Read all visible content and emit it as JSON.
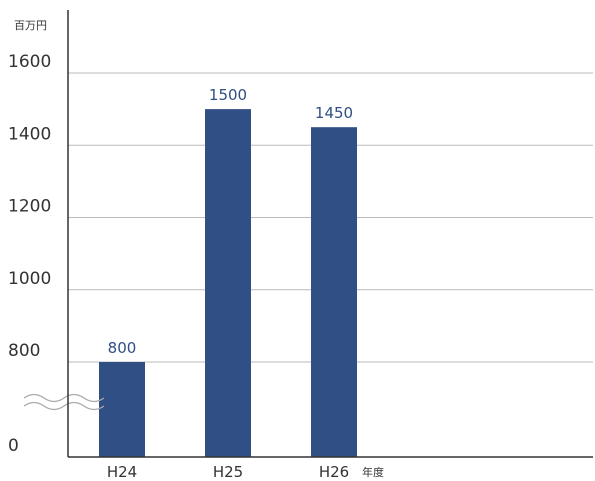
{
  "chart_data": {
    "type": "bar",
    "y_unit": "百万円",
    "x_unit": "年度",
    "categories": [
      "H24",
      "H25",
      "H26"
    ],
    "values": [
      800,
      1500,
      1450
    ],
    "y_ticks": [
      {
        "label": "0",
        "value": 0
      },
      {
        "label": "800",
        "value": 800
      },
      {
        "label": "1000",
        "value": 1000
      },
      {
        "label": "1200",
        "value": 1200
      },
      {
        "label": "1400",
        "value": 1400
      },
      {
        "label": "1600",
        "value": 1600
      }
    ],
    "ylim": [
      0,
      1600
    ],
    "axis_break": true,
    "grid": true,
    "legend": "none",
    "colors": {
      "bar": "#2f4f85",
      "value_label": "#2f4f85",
      "grid": "#bbbbbb",
      "axis": "#333333",
      "break_mark": "#aaaaaa"
    }
  }
}
